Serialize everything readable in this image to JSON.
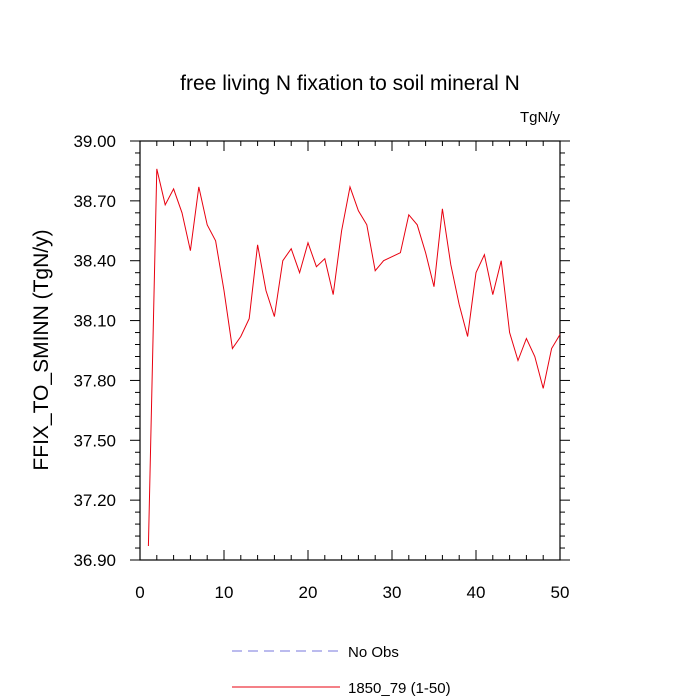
{
  "chart_data": {
    "type": "line",
    "title": "free living N fixation to soil mineral N",
    "units_label": "TgN/y",
    "ylabel": "FFIX_TO_SMINN  (TgN/y)",
    "xlabel": "",
    "xlim": [
      0,
      50
    ],
    "ylim": [
      36.9,
      39.0
    ],
    "xticks": [
      0,
      10,
      20,
      30,
      40,
      50
    ],
    "yticks": [
      36.9,
      37.2,
      37.5,
      37.8,
      38.1,
      38.4,
      38.7,
      39.0
    ],
    "ytick_labels": [
      "36.90",
      "37.20",
      "37.50",
      "37.80",
      "38.10",
      "38.40",
      "38.70",
      "39.00"
    ],
    "grid": false,
    "legend_position": "bottom-center",
    "series": [
      {
        "name": "No Obs",
        "color": "#7777dd",
        "style": "dashed",
        "x": [],
        "y": []
      },
      {
        "name": "1850_79 (1-50)",
        "color": "#e8000f",
        "style": "solid",
        "x": [
          1,
          2,
          3,
          4,
          5,
          6,
          7,
          8,
          9,
          10,
          11,
          12,
          13,
          14,
          15,
          16,
          17,
          18,
          19,
          20,
          21,
          22,
          23,
          24,
          25,
          26,
          27,
          28,
          29,
          30,
          31,
          32,
          33,
          34,
          35,
          36,
          37,
          38,
          39,
          40,
          41,
          42,
          43,
          44,
          45,
          46,
          47,
          48,
          49,
          50
        ],
        "y": [
          36.97,
          38.86,
          38.68,
          38.76,
          38.64,
          38.45,
          38.77,
          38.58,
          38.5,
          38.25,
          37.96,
          38.02,
          38.11,
          38.48,
          38.25,
          38.12,
          38.4,
          38.46,
          38.34,
          38.49,
          38.37,
          38.41,
          38.23,
          38.55,
          38.77,
          38.65,
          38.58,
          38.35,
          38.4,
          38.42,
          38.44,
          38.63,
          38.58,
          38.44,
          38.27,
          38.66,
          38.38,
          38.18,
          38.02,
          38.34,
          38.43,
          38.23,
          38.4,
          38.04,
          37.9,
          38.01,
          37.92,
          37.76,
          37.96,
          38.03
        ]
      }
    ]
  }
}
